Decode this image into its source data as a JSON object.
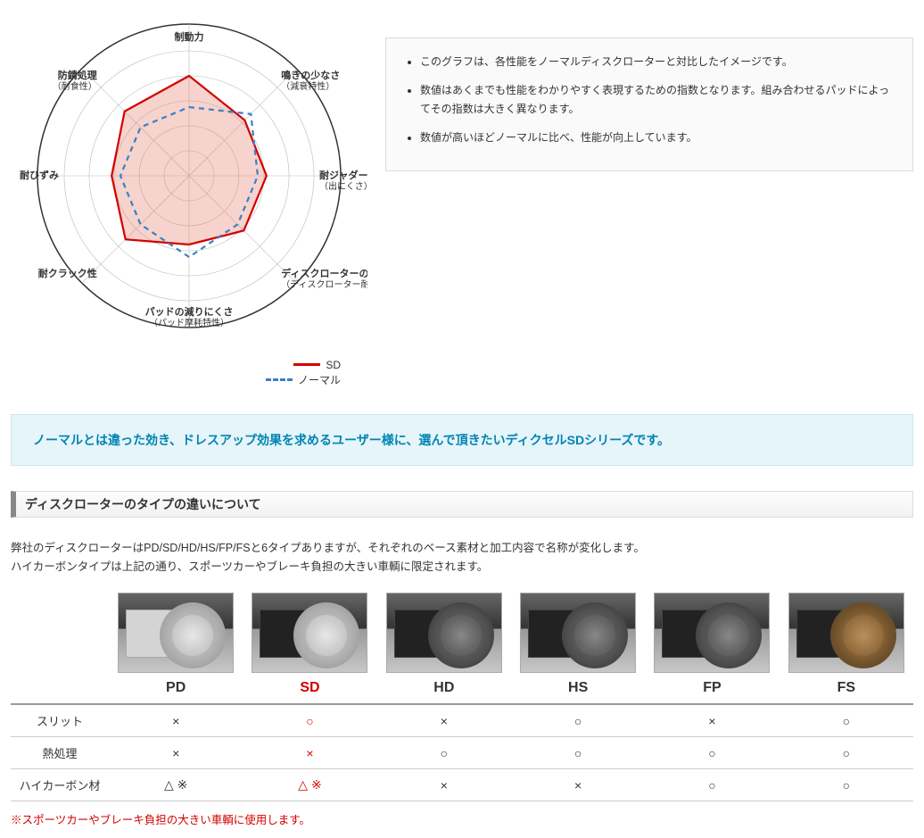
{
  "radar": {
    "axes": [
      {
        "label": "制動力",
        "sub": "",
        "angle": -90
      },
      {
        "label": "鳴きの少なさ",
        "sub": "（減衰特性）",
        "angle": -45
      },
      {
        "label": "耐ジャダー性",
        "sub": "（出にくさ）",
        "angle": 0
      },
      {
        "label": "ディスクローターのライフ",
        "sub": "（ディスクローター耐摩耗）",
        "angle": 45
      },
      {
        "label": "パッドの減りにくさ",
        "sub": "（パッド摩耗特性）",
        "angle": 90
      },
      {
        "label": "耐クラック性",
        "sub": "",
        "angle": 135
      },
      {
        "label": "耐ひずみ",
        "sub": "",
        "angle": 180
      },
      {
        "label": "防錆処理",
        "sub": "（耐食性）",
        "angle": -135
      }
    ],
    "series": [
      {
        "name": "SD",
        "color": "#d40000",
        "dash": "none",
        "fill": "rgba(230,130,110,0.35)",
        "values": [
          0.8,
          0.63,
          0.62,
          0.62,
          0.55,
          0.72,
          0.62,
          0.73
        ]
      },
      {
        "name": "ノーマル",
        "color": "#3a7fc7",
        "dash": "6 5",
        "fill": "none",
        "values": [
          0.55,
          0.7,
          0.55,
          0.55,
          0.65,
          0.55,
          0.55,
          0.55
        ]
      }
    ],
    "radius": 140,
    "rings": 5,
    "grid_color": "#bbb",
    "label_fontsize": 11
  },
  "notes": [
    "このグラフは、各性能をノーマルディスクローターと対比したイメージです。",
    "数値はあくまでも性能をわかりやすく表現するための指数となります。組み合わせるパッドによってその指数は大きく異なります。",
    "数値が高いほどノーマルに比べ、性能が向上しています。"
  ],
  "blue_banner": "ノーマルとは違った効き、ドレスアップ効果を求めるユーザー様に、選んで頂きたいディクセルSDシリーズです。",
  "section_title": "ディスクローターのタイプの違いについて",
  "desc": [
    "弊社のディスクローターはPD/SD/HD/HS/FP/FSと6タイプありますが、それぞれのベース素材と加工内容で名称が変化します。",
    "ハイカーボンタイプは上記の通り、スポーツカーやブレーキ負担の大きい車輌に限定されます。"
  ],
  "products": [
    {
      "id": "PD",
      "label": "PD",
      "highlight": false,
      "disc": "light",
      "box": "light"
    },
    {
      "id": "SD",
      "label": "SD",
      "highlight": true,
      "disc": "light",
      "box": "dark"
    },
    {
      "id": "HD",
      "label": "HD",
      "highlight": false,
      "disc": "dark",
      "box": "dark"
    },
    {
      "id": "HS",
      "label": "HS",
      "highlight": false,
      "disc": "dark",
      "box": "dark"
    },
    {
      "id": "FP",
      "label": "FP",
      "highlight": false,
      "disc": "dark",
      "box": "dark"
    },
    {
      "id": "FS",
      "label": "FS",
      "highlight": false,
      "disc": "gold",
      "box": "dark"
    }
  ],
  "compare": {
    "rows": [
      {
        "label": "スリット",
        "cells": [
          {
            "v": "×",
            "h": false
          },
          {
            "v": "○",
            "h": true
          },
          {
            "v": "×",
            "h": false
          },
          {
            "v": "○",
            "h": false
          },
          {
            "v": "×",
            "h": false
          },
          {
            "v": "○",
            "h": false
          }
        ]
      },
      {
        "label": "熱処理",
        "cells": [
          {
            "v": "×",
            "h": false
          },
          {
            "v": "×",
            "h": true
          },
          {
            "v": "○",
            "h": false
          },
          {
            "v": "○",
            "h": false
          },
          {
            "v": "○",
            "h": false
          },
          {
            "v": "○",
            "h": false
          }
        ]
      },
      {
        "label": "ハイカーボン材",
        "cells": [
          {
            "v": "△ ※",
            "h": false
          },
          {
            "v": "△ ※",
            "h": true
          },
          {
            "v": "×",
            "h": false
          },
          {
            "v": "×",
            "h": false
          },
          {
            "v": "○",
            "h": false
          },
          {
            "v": "○",
            "h": false
          }
        ]
      }
    ]
  },
  "footnote": "※スポーツカーやブレーキ負担の大きい車輌に使用します。"
}
